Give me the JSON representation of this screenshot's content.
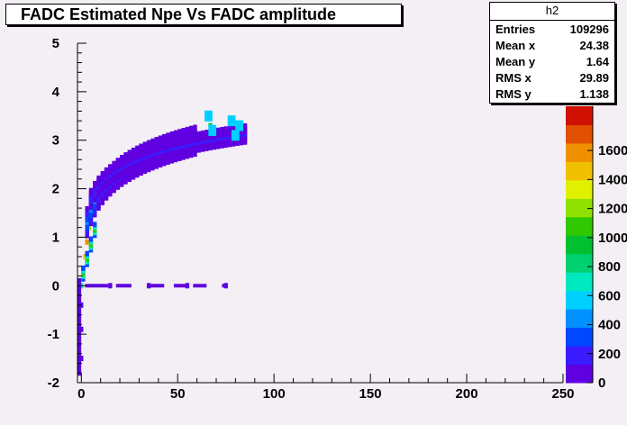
{
  "title": "FADC Estimated Npe Vs FADC amplitude",
  "stats": {
    "name": "h2",
    "rows": [
      {
        "k": "Entries",
        "v": "109296"
      },
      {
        "k": "Mean x",
        "v": "24.38"
      },
      {
        "k": "Mean y",
        "v": "1.64"
      },
      {
        "k": "RMS x",
        "v": "29.89"
      },
      {
        "k": "RMS y",
        "v": "1.138"
      }
    ]
  },
  "chart_data": {
    "type": "heatmap",
    "title": "FADC Estimated Npe Vs FADC amplitude",
    "xlabel": "",
    "ylabel": "",
    "xlim": [
      -2,
      250
    ],
    "ylim": [
      -2,
      5
    ],
    "x_ticks": [
      "0",
      "50",
      "100",
      "150",
      "200",
      "250"
    ],
    "y_ticks": [
      "-2",
      "-1",
      "0",
      "1",
      "2",
      "3",
      "4",
      "5"
    ],
    "colorbar": {
      "ticks": [
        "0",
        "200",
        "400",
        "600",
        "800",
        "1000",
        "1200",
        "1400",
        "1600"
      ],
      "colors": [
        "#6000e0",
        "#3a1cff",
        "#0048ff",
        "#0090ff",
        "#00d0ff",
        "#00e8c0",
        "#00d070",
        "#00c030",
        "#30c800",
        "#90e000",
        "#e0f000",
        "#f0c000",
        "#f09000",
        "#e05000",
        "#d01000"
      ]
    },
    "cells": [
      {
        "x": 0,
        "y": -1.5,
        "v": 0.03
      },
      {
        "x": 0,
        "y": -0.9,
        "v": 0.05
      },
      {
        "x": 0,
        "y": -0.4,
        "v": 0.1
      },
      {
        "x": 0,
        "y": 0.0,
        "v": 0.35
      },
      {
        "x": 1,
        "y": 0.3,
        "v": 0.45
      },
      {
        "x": 2,
        "y": 0.6,
        "v": 0.75
      },
      {
        "x": 3,
        "y": 0.9,
        "v": 0.85
      },
      {
        "x": 4,
        "y": 1.2,
        "v": 0.65
      },
      {
        "x": 6,
        "y": 1.5,
        "v": 0.45
      },
      {
        "x": 8,
        "y": 1.8,
        "v": 0.4
      },
      {
        "x": 11,
        "y": 2.0,
        "v": 0.3
      },
      {
        "x": 15,
        "y": 2.2,
        "v": 0.15
      },
      {
        "x": 25,
        "y": 2.5,
        "v": 0.08
      },
      {
        "x": 40,
        "y": 2.7,
        "v": 0.06
      },
      {
        "x": 55,
        "y": 2.9,
        "v": 0.05
      },
      {
        "x": 67,
        "y": 3.3,
        "v": 0.4
      },
      {
        "x": 79,
        "y": 3.2,
        "v": 0.4
      },
      {
        "x": 15,
        "y": 0.0,
        "v": 0.03
      },
      {
        "x": 35,
        "y": 0.0,
        "v": 0.03
      },
      {
        "x": 55,
        "y": 0.0,
        "v": 0.03
      },
      {
        "x": 75,
        "y": 0.0,
        "v": 0.03
      }
    ]
  }
}
